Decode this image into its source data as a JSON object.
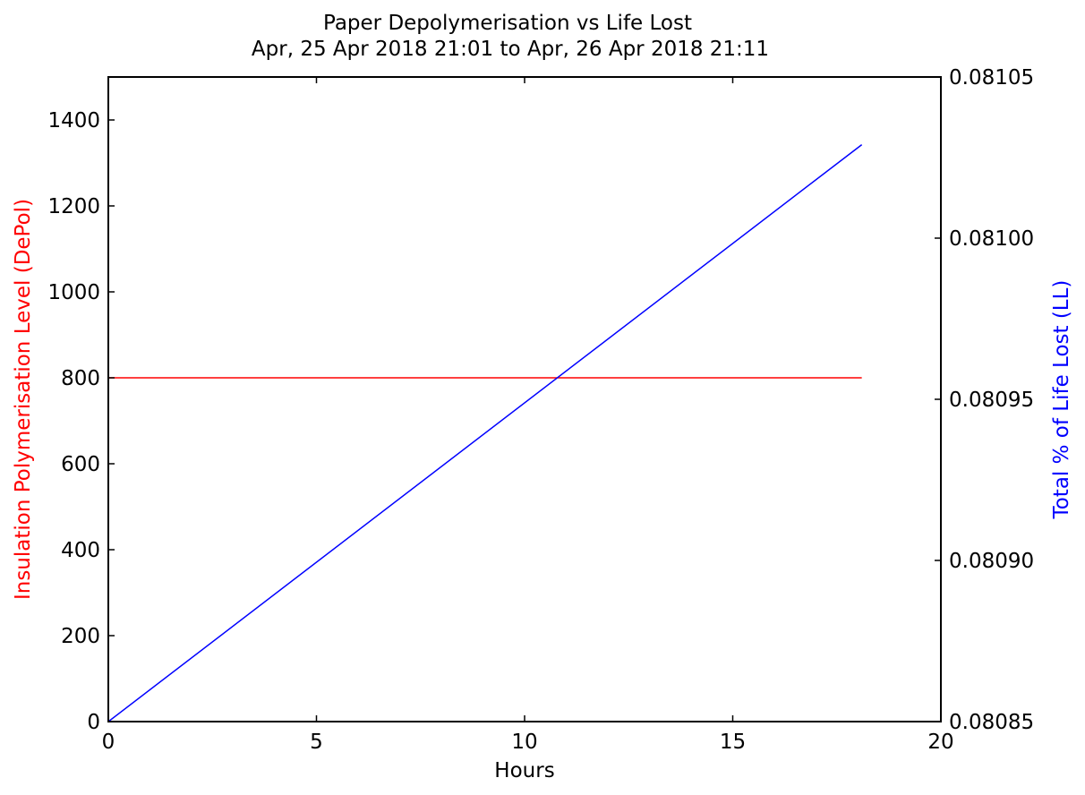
{
  "chart_data": {
    "type": "line",
    "title": "Paper Depolymerisation vs Life Lost",
    "subtitle": "Apr, 25 Apr 2018 21:01 to Apr, 26 Apr 2018 21:11",
    "xlabel": "Hours",
    "ylabel_left": "Insulation Polymerisation Level (DePol)",
    "ylabel_right": "Total % of Life Lost (LL)",
    "xlim": [
      0,
      20
    ],
    "ylim_left": [
      0,
      1500
    ],
    "ylim_right": [
      0.08085,
      0.08105
    ],
    "x_ticks": [
      "0",
      "5",
      "10",
      "15",
      "20"
    ],
    "y_ticks_left": [
      "0",
      "200",
      "400",
      "600",
      "800",
      "1000",
      "1200",
      "1400"
    ],
    "y_ticks_right": [
      "0.08085",
      "0.08090",
      "0.08095",
      "0.08100",
      "0.08105"
    ],
    "grid": false,
    "series": [
      {
        "axis": "left",
        "color": "#ff0000",
        "x": [
          0,
          18.1
        ],
        "y": [
          800,
          800
        ]
      },
      {
        "axis": "right",
        "color": "#0000ff",
        "x": [
          0,
          18.1
        ],
        "y": [
          0.08085,
          0.081029
        ]
      }
    ]
  }
}
